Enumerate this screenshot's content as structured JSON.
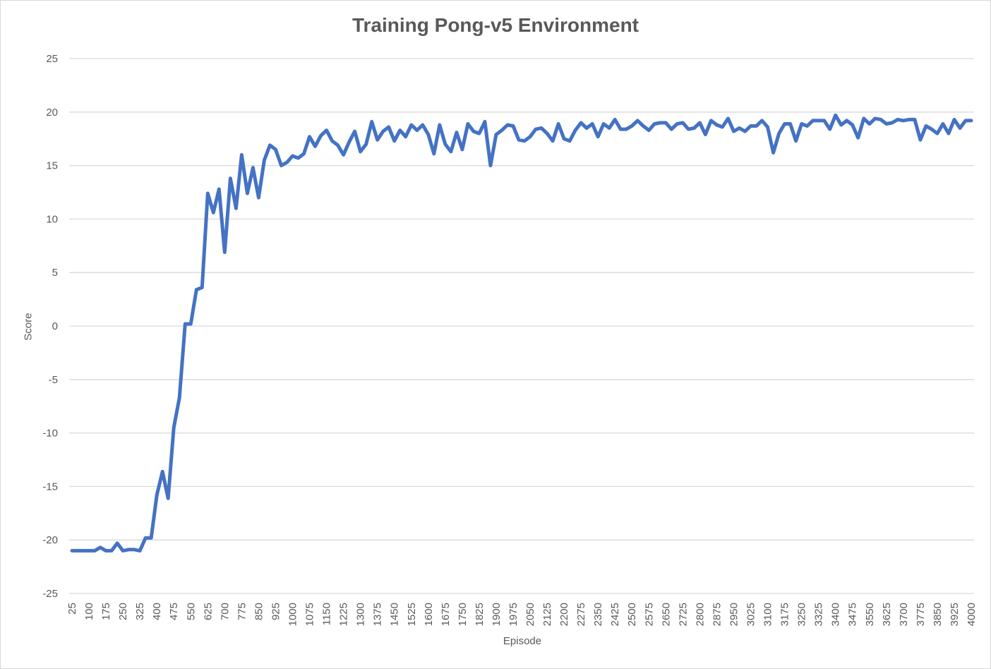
{
  "chart_data": {
    "type": "line",
    "title": "Training Pong-v5 Environment",
    "xlabel": "Episode",
    "ylabel": "Score",
    "ylim": [
      -25,
      25
    ],
    "yticks": [
      25,
      20,
      15,
      10,
      5,
      0,
      -5,
      -10,
      -15,
      -20,
      -25
    ],
    "xtick_labels": [
      "25",
      "100",
      "175",
      "250",
      "325",
      "400",
      "475",
      "550",
      "625",
      "700",
      "775",
      "850",
      "925",
      "1000",
      "1075",
      "1150",
      "1225",
      "1300",
      "1375",
      "1450",
      "1525",
      "1600",
      "1675",
      "1750",
      "1825",
      "1900",
      "1975",
      "2050",
      "2125",
      "2200",
      "2275",
      "2350",
      "2425",
      "2500",
      "2575",
      "2650",
      "2725",
      "2800",
      "2875",
      "2950",
      "3025",
      "3100",
      "3175",
      "3250",
      "3325",
      "3400",
      "3475",
      "3550",
      "3625",
      "3700",
      "3775",
      "3850",
      "3925",
      "4000"
    ],
    "grid": true,
    "legend": "none",
    "color": "#4472c4",
    "series": [
      {
        "x": [
          25,
          50,
          75,
          100,
          125,
          150,
          175,
          200,
          225,
          250,
          275,
          300,
          325,
          350,
          375,
          400,
          425,
          450,
          475,
          500,
          525,
          550,
          575,
          600,
          625,
          650,
          675,
          700,
          725,
          750,
          775,
          800,
          825,
          850,
          875,
          900,
          925,
          950,
          975,
          1000,
          1025,
          1050,
          1075,
          1100,
          1125,
          1150,
          1175,
          1200,
          1225,
          1250,
          1275,
          1300,
          1325,
          1350,
          1375,
          1400,
          1425,
          1450,
          1475,
          1500,
          1525,
          1550,
          1575,
          1600,
          1625,
          1650,
          1675,
          1700,
          1725,
          1750,
          1775,
          1800,
          1825,
          1850,
          1875,
          1900,
          1925,
          1950,
          1975,
          2000,
          2025,
          2050,
          2075,
          2100,
          2125,
          2150,
          2175,
          2200,
          2225,
          2250,
          2275,
          2300,
          2325,
          2350,
          2375,
          2400,
          2425,
          2450,
          2475,
          2500,
          2525,
          2550,
          2575,
          2600,
          2625,
          2650,
          2675,
          2700,
          2725,
          2750,
          2775,
          2800,
          2825,
          2850,
          2875,
          2900,
          2925,
          2950,
          2975,
          3000,
          3025,
          3050,
          3075,
          3100,
          3125,
          3150,
          3175,
          3200,
          3225,
          3250,
          3275,
          3300,
          3325,
          3350,
          3375,
          3400,
          3425,
          3450,
          3475,
          3500,
          3525,
          3550,
          3575,
          3600,
          3625,
          3650,
          3675,
          3700,
          3725,
          3750,
          3775,
          3800,
          3825,
          3850,
          3875,
          3900,
          3925,
          3950,
          3975,
          4000
        ],
        "values": [
          -21.0,
          -21.0,
          -21.0,
          -21.0,
          -21.0,
          -20.7,
          -21.0,
          -21.0,
          -20.3,
          -21.0,
          -20.9,
          -20.9,
          -21.0,
          -19.8,
          -19.8,
          -15.8,
          -13.6,
          -16.1,
          -9.5,
          -6.7,
          0.2,
          0.2,
          3.4,
          3.6,
          12.4,
          10.6,
          12.8,
          6.9,
          13.8,
          11.0,
          16.0,
          12.4,
          14.8,
          12.0,
          15.5,
          16.9,
          16.5,
          15.0,
          15.3,
          15.9,
          15.7,
          16.1,
          17.7,
          16.8,
          17.8,
          18.3,
          17.3,
          16.9,
          16.0,
          17.2,
          18.2,
          16.3,
          17.0,
          19.1,
          17.4,
          18.2,
          18.6,
          17.3,
          18.3,
          17.7,
          18.8,
          18.3,
          18.8,
          17.9,
          16.1,
          18.8,
          17.0,
          16.3,
          18.1,
          16.5,
          18.9,
          18.2,
          18.0,
          19.1,
          15.0,
          17.9,
          18.3,
          18.8,
          18.7,
          17.4,
          17.3,
          17.7,
          18.4,
          18.5,
          18.0,
          17.3,
          18.9,
          17.5,
          17.3,
          18.3,
          19.0,
          18.5,
          18.9,
          17.7,
          18.9,
          18.5,
          19.3,
          18.4,
          18.4,
          18.7,
          19.2,
          18.7,
          18.3,
          18.9,
          19.0,
          19.0,
          18.4,
          18.9,
          19.0,
          18.4,
          18.5,
          19.0,
          17.9,
          19.2,
          18.8,
          18.6,
          19.4,
          18.2,
          18.5,
          18.2,
          18.7,
          18.7,
          19.2,
          18.6,
          16.2,
          18.0,
          18.9,
          18.9,
          17.3,
          18.9,
          18.7,
          19.2,
          19.2,
          19.2,
          18.4,
          19.7,
          18.8,
          19.2,
          18.8,
          17.6,
          19.4,
          18.9,
          19.4,
          19.3,
          18.9,
          19.0,
          19.3,
          19.2,
          19.3,
          19.3,
          17.4,
          18.7,
          18.4,
          18.0,
          18.9,
          18.0,
          19.3,
          18.5,
          19.2,
          19.2
        ]
      }
    ]
  }
}
